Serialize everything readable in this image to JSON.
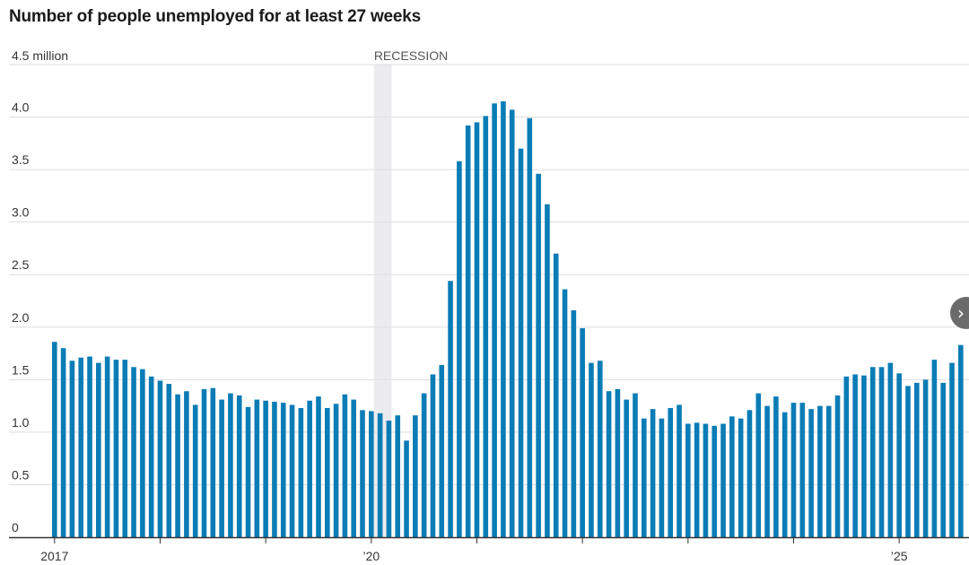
{
  "chart_data": {
    "type": "bar",
    "title": "Number of people unemployed for at least 27 weeks",
    "units_label": "4.5 million",
    "annotation": "RECESSION",
    "y_ticks": [
      "0",
      "0.5",
      "1.0",
      "1.5",
      "2.0",
      "2.5",
      "3.0",
      "3.5",
      "4.0"
    ],
    "ylim": [
      0,
      4.5
    ],
    "grid": true,
    "x_ticks": [
      {
        "label": "2017",
        "year": 2017
      },
      {
        "label": "’20",
        "year": 2020
      },
      {
        "label": "’25",
        "year": 2025
      }
    ],
    "start": "2017-01",
    "frequency": "monthly",
    "recession": {
      "start": "2020-02",
      "end": "2020-04"
    },
    "color": "#0a7cb6",
    "values": [
      1.86,
      1.8,
      1.68,
      1.71,
      1.72,
      1.66,
      1.72,
      1.69,
      1.69,
      1.62,
      1.6,
      1.53,
      1.49,
      1.46,
      1.36,
      1.39,
      1.26,
      1.41,
      1.42,
      1.31,
      1.37,
      1.35,
      1.24,
      1.31,
      1.3,
      1.29,
      1.28,
      1.26,
      1.23,
      1.3,
      1.34,
      1.23,
      1.27,
      1.36,
      1.31,
      1.21,
      1.2,
      1.18,
      1.11,
      1.16,
      0.92,
      1.16,
      1.37,
      1.55,
      1.64,
      2.44,
      3.58,
      3.92,
      3.95,
      4.01,
      4.13,
      4.15,
      4.07,
      3.7,
      3.99,
      3.46,
      3.17,
      2.7,
      2.36,
      2.16,
      1.99,
      1.66,
      1.68,
      1.39,
      1.41,
      1.31,
      1.37,
      1.13,
      1.22,
      1.13,
      1.23,
      1.26,
      1.08,
      1.09,
      1.08,
      1.06,
      1.08,
      1.15,
      1.13,
      1.21,
      1.37,
      1.25,
      1.34,
      1.19,
      1.28,
      1.28,
      1.22,
      1.25,
      1.25,
      1.35,
      1.53,
      1.55,
      1.54,
      1.62,
      1.62,
      1.66,
      1.56,
      1.44,
      1.47,
      1.5,
      1.69,
      1.47,
      1.66,
      1.83
    ]
  },
  "controls": {
    "next_icon": "chevron-right-icon"
  }
}
